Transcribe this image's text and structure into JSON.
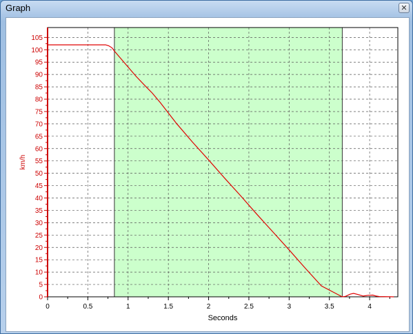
{
  "window": {
    "title": "Graph",
    "close_icon": "close-icon"
  },
  "chart_data": {
    "type": "line",
    "title": "",
    "xlabel": "Seconds",
    "ylabel": "km/h",
    "xlim": [
      0,
      4.35
    ],
    "ylim": [
      0,
      109
    ],
    "x_ticks": [
      "0",
      "0.5",
      "1",
      "1.5",
      "2",
      "2.5",
      "3",
      "3.5",
      "4"
    ],
    "x_tick_values": [
      0,
      0.5,
      1,
      1.5,
      2,
      2.5,
      3,
      3.5,
      4
    ],
    "y_ticks": [
      "0",
      "5",
      "10",
      "15",
      "20",
      "25",
      "30",
      "35",
      "40",
      "45",
      "50",
      "55",
      "60",
      "65",
      "70",
      "75",
      "80",
      "85",
      "90",
      "95",
      "100",
      "105"
    ],
    "y_tick_values": [
      0,
      5,
      10,
      15,
      20,
      25,
      30,
      35,
      40,
      45,
      50,
      55,
      60,
      65,
      70,
      75,
      80,
      85,
      90,
      95,
      100,
      105
    ],
    "grid": true,
    "highlight_region": {
      "x": [
        0.83,
        3.66
      ],
      "color": "#ccffcc"
    },
    "series": [
      {
        "color": "#e00000",
        "x": [
          0,
          0.72,
          0.76,
          0.8,
          0.83,
          0.9,
          1.0,
          1.1,
          1.2,
          1.3,
          1.4,
          1.5,
          1.6,
          1.8,
          2.0,
          2.2,
          2.4,
          2.6,
          2.8,
          3.0,
          3.2,
          3.4,
          3.6,
          3.66,
          3.7,
          3.76,
          3.8,
          3.86,
          3.92,
          3.98,
          4.04,
          4.08,
          4.12,
          4.3
        ],
        "y": [
          102,
          102,
          101.6,
          100.8,
          99.5,
          96.8,
          93,
          89.2,
          85.8,
          82.5,
          78.6,
          74.4,
          70.2,
          62.6,
          55.4,
          48.0,
          40.8,
          33.4,
          26.2,
          19.0,
          11.6,
          4.4,
          1.0,
          0,
          0.2,
          1.1,
          1.4,
          0.9,
          0.3,
          0.6,
          0.7,
          0.3,
          0.1,
          0
        ]
      }
    ]
  }
}
